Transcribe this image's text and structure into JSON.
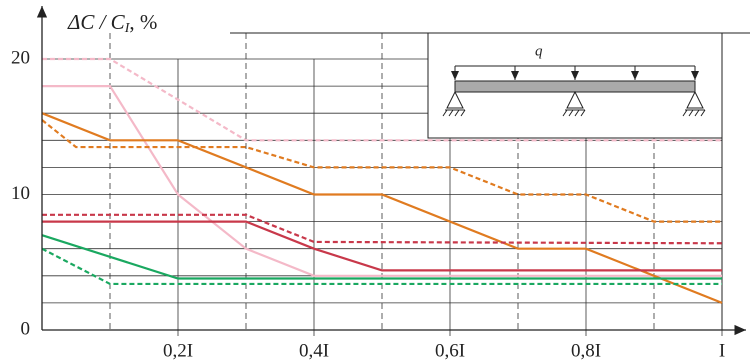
{
  "chart_data": {
    "type": "line",
    "y_label": {
      "main": "ΔC / C",
      "sub": "I",
      "suffix": ", %"
    },
    "xlim": [
      0,
      1
    ],
    "ylim": [
      0,
      20
    ],
    "xticks": [
      {
        "value": 0.2,
        "label": "0,2I"
      },
      {
        "value": 0.4,
        "label": "0,4I"
      },
      {
        "value": 0.6,
        "label": "0,6I"
      },
      {
        "value": 0.8,
        "label": "0,8I"
      },
      {
        "value": 1,
        "label": "I"
      }
    ],
    "yticks": [
      0,
      10,
      20
    ],
    "y_grid": [
      2,
      4,
      6,
      8,
      12,
      14,
      16,
      18
    ],
    "x_grid_dashed": [
      0.1,
      0.3,
      0.5,
      0.7,
      0.9
    ],
    "inset_label": "q",
    "series": [
      {
        "color": "#f4b9c8",
        "dash": false,
        "x": [
          0,
          0.1,
          0.2,
          0.3,
          0.4,
          1
        ],
        "values": [
          18,
          18,
          10,
          6,
          4,
          4
        ]
      },
      {
        "color": "#f4b9c8",
        "dash": true,
        "x": [
          0,
          0.1,
          0.3,
          1
        ],
        "values": [
          20,
          20,
          14,
          14
        ]
      },
      {
        "color": "#e07b20",
        "dash": false,
        "x": [
          0,
          0.1,
          0.2,
          0.4,
          0.5,
          0.7,
          0.8,
          1
        ],
        "values": [
          16,
          14,
          14,
          10,
          10,
          6,
          6,
          2
        ]
      },
      {
        "color": "#e07b20",
        "dash": true,
        "x": [
          0,
          0.05,
          0.3,
          0.4,
          0.6,
          0.7,
          0.8,
          0.9,
          1
        ],
        "values": [
          15.5,
          13.5,
          13.5,
          12,
          12,
          10,
          10,
          8,
          8
        ]
      },
      {
        "color": "#c8384a",
        "dash": false,
        "x": [
          0,
          0.3,
          0.4,
          0.5,
          1
        ],
        "values": [
          8,
          8,
          6,
          4.4,
          4.4
        ]
      },
      {
        "color": "#c8384a",
        "dash": true,
        "x": [
          0,
          0.3,
          0.4,
          1
        ],
        "values": [
          8.5,
          8.5,
          6.5,
          6.4
        ]
      },
      {
        "color": "#1aa860",
        "dash": false,
        "x": [
          0,
          0.2,
          1
        ],
        "values": [
          7,
          3.8,
          3.8
        ]
      },
      {
        "color": "#1aa860",
        "dash": true,
        "x": [
          0,
          0.1,
          1
        ],
        "values": [
          6,
          3.4,
          3.4
        ]
      }
    ]
  }
}
